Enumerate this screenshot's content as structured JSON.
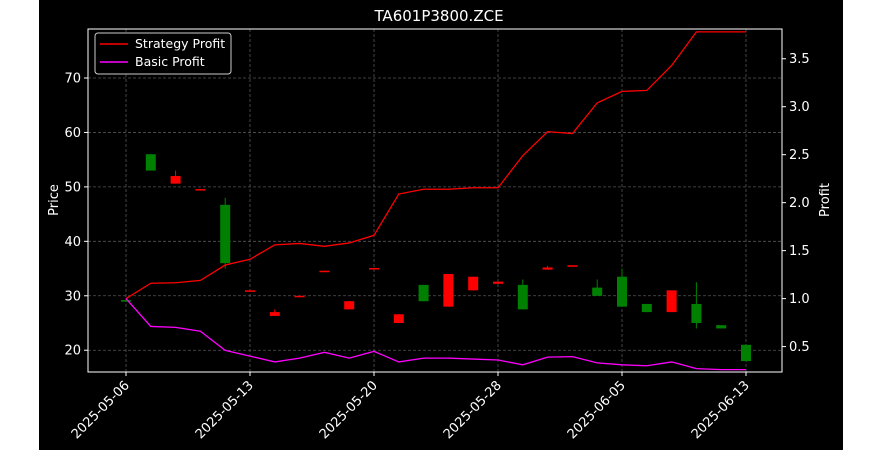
{
  "chart_data": {
    "type": "candlestick",
    "title": "TA601P3800.ZCE",
    "ylabel": "Price",
    "ylabel_right": "Profit",
    "xlabel": "",
    "ylim": [
      16.0,
      79.0
    ],
    "ylim_right": [
      0.235,
      3.81
    ],
    "grid": true,
    "legend_position": "top-left",
    "x_tick_labels": [
      "2025-05-06",
      "2025-05-13",
      "2025-05-20",
      "2025-05-28",
      "2025-06-05",
      "2025-06-13"
    ],
    "y_ticks": [
      20,
      30,
      40,
      50,
      60,
      70
    ],
    "y_ticks_right": [
      "0.5",
      "1.0",
      "1.5",
      "2.0",
      "2.5",
      "3.0",
      "3.5"
    ],
    "colors": {
      "up": "#008000",
      "down": "#ff0000",
      "strategy": "#ff0000",
      "basic": "#ff00ff",
      "background": "#000000",
      "text": "#ffffff"
    },
    "candles": [
      {
        "o": 29.2,
        "c": 29.2,
        "h": 29.4,
        "l": 29.0
      },
      {
        "o": 53.0,
        "c": 56.0,
        "h": 56.0,
        "l": 53.0
      },
      {
        "o": 52.0,
        "c": 50.6,
        "h": 53.0,
        "l": 50.6
      },
      {
        "o": 49.6,
        "c": 49.4,
        "h": 49.6,
        "l": 49.4
      },
      {
        "o": 36.0,
        "c": 46.7,
        "h": 48.0,
        "l": 35.0
      },
      {
        "o": 31.0,
        "c": 30.8,
        "h": 31.0,
        "l": 30.8
      },
      {
        "o": 27.0,
        "c": 26.3,
        "h": 27.5,
        "l": 26.3
      },
      {
        "o": 30.0,
        "c": 29.8,
        "h": 30.0,
        "l": 29.8
      },
      {
        "o": 34.6,
        "c": 34.4,
        "h": 34.6,
        "l": 34.4
      },
      {
        "o": 29.0,
        "c": 27.5,
        "h": 29.0,
        "l": 27.5
      },
      {
        "o": 35.1,
        "c": 34.9,
        "h": 35.1,
        "l": 34.9
      },
      {
        "o": 26.6,
        "c": 25.0,
        "h": 26.6,
        "l": 25.0
      },
      {
        "o": 29.0,
        "c": 32.0,
        "h": 32.0,
        "l": 29.0
      },
      {
        "o": 34.0,
        "c": 28.0,
        "h": 34.0,
        "l": 28.0
      },
      {
        "o": 33.5,
        "c": 31.0,
        "h": 33.5,
        "l": 31.0
      },
      {
        "o": 32.6,
        "c": 32.2,
        "h": 32.6,
        "l": 32.2
      },
      {
        "o": 27.5,
        "c": 32.0,
        "h": 33.0,
        "l": 27.5
      },
      {
        "o": 35.2,
        "c": 34.8,
        "h": 35.5,
        "l": 34.8
      },
      {
        "o": 35.6,
        "c": 35.4,
        "h": 35.6,
        "l": 35.4
      },
      {
        "o": 30.0,
        "c": 31.5,
        "h": 33.0,
        "l": 30.0
      },
      {
        "o": 28.0,
        "c": 33.5,
        "h": 35.0,
        "l": 28.0
      },
      {
        "o": 27.0,
        "c": 28.5,
        "h": 28.5,
        "l": 27.0
      },
      {
        "o": 31.0,
        "c": 27.0,
        "h": 31.0,
        "l": 27.0
      },
      {
        "o": 25.0,
        "c": 28.5,
        "h": 32.5,
        "l": 24.0
      },
      {
        "o": 24.0,
        "c": 24.6,
        "h": 24.6,
        "l": 24.0
      },
      {
        "o": 18.0,
        "c": 21.0,
        "h": 21.0,
        "l": 18.0
      }
    ],
    "series": [
      {
        "name": "Strategy Profit",
        "values": [
          1.0,
          1.16,
          1.165,
          1.19,
          1.35,
          1.41,
          1.56,
          1.575,
          1.545,
          1.58,
          1.66,
          2.09,
          2.14,
          2.14,
          2.155,
          2.155,
          2.49,
          2.74,
          2.72,
          3.04,
          3.16,
          3.17,
          3.43,
          3.78,
          3.78,
          3.78
        ]
      },
      {
        "name": "Basic Profit",
        "values": [
          1.0,
          0.71,
          0.7,
          0.66,
          0.46,
          0.4,
          0.34,
          0.38,
          0.44,
          0.38,
          0.45,
          0.34,
          0.38,
          0.38,
          0.37,
          0.36,
          0.31,
          0.39,
          0.395,
          0.33,
          0.31,
          0.3,
          0.34,
          0.27,
          0.26,
          0.26
        ]
      }
    ]
  }
}
